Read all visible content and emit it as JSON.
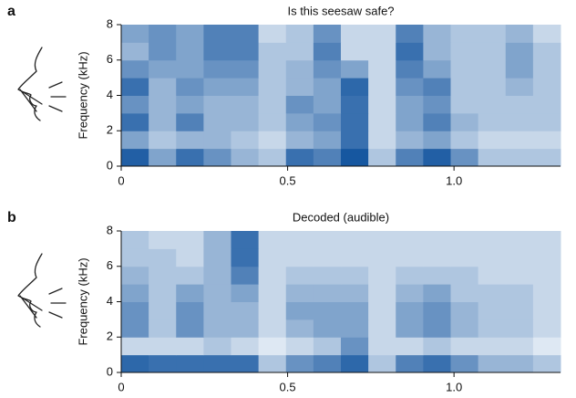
{
  "chart_data": [
    {
      "type": "spectrogram",
      "panel_label": "a",
      "title": "Is this seesaw safe?",
      "y_label": "Frequency (kHz)",
      "xlim": [
        0,
        1.32
      ],
      "xticks": [
        0,
        0.5,
        {
          "value": 1,
          "label": "1.0"
        }
      ],
      "ylim": [
        0,
        8
      ],
      "yticks": [
        0,
        2,
        4,
        6,
        8
      ],
      "colormap": [
        "#f6f9fd",
        "#0a4e9b"
      ],
      "z": [
        [
          0.9,
          0.5,
          0.8,
          0.6,
          0.4,
          0.3,
          0.8,
          0.7,
          0.95,
          0.3,
          0.7,
          0.9,
          0.6,
          0.3,
          0.3,
          0.3
        ],
        [
          0.5,
          0.3,
          0.4,
          0.4,
          0.3,
          0.2,
          0.4,
          0.5,
          0.8,
          0.2,
          0.4,
          0.5,
          0.3,
          0.2,
          0.2,
          0.2
        ],
        [
          0.8,
          0.4,
          0.7,
          0.4,
          0.4,
          0.3,
          0.5,
          0.6,
          0.8,
          0.2,
          0.5,
          0.7,
          0.4,
          0.3,
          0.3,
          0.3
        ],
        [
          0.6,
          0.4,
          0.5,
          0.4,
          0.4,
          0.3,
          0.6,
          0.5,
          0.8,
          0.2,
          0.5,
          0.6,
          0.3,
          0.3,
          0.3,
          0.3
        ],
        [
          0.8,
          0.4,
          0.6,
          0.5,
          0.5,
          0.3,
          0.4,
          0.5,
          0.85,
          0.2,
          0.6,
          0.7,
          0.3,
          0.3,
          0.4,
          0.3
        ],
        [
          0.6,
          0.5,
          0.5,
          0.6,
          0.6,
          0.3,
          0.4,
          0.6,
          0.5,
          0.2,
          0.7,
          0.5,
          0.3,
          0.3,
          0.5,
          0.3
        ],
        [
          0.4,
          0.6,
          0.5,
          0.7,
          0.7,
          0.3,
          0.3,
          0.7,
          0.2,
          0.2,
          0.8,
          0.4,
          0.3,
          0.3,
          0.5,
          0.3
        ],
        [
          0.5,
          0.6,
          0.5,
          0.7,
          0.7,
          0.2,
          0.3,
          0.6,
          0.2,
          0.2,
          0.7,
          0.4,
          0.3,
          0.3,
          0.4,
          0.2
        ]
      ]
    },
    {
      "type": "spectrogram",
      "panel_label": "b",
      "title": "Decoded (audible)",
      "y_label": "Frequency (kHz)",
      "xlim": [
        0,
        1.32
      ],
      "xticks": [
        0,
        0.5,
        {
          "value": 1,
          "label": "1.0"
        }
      ],
      "ylim": [
        0,
        8
      ],
      "yticks": [
        0,
        2,
        4,
        6,
        8
      ],
      "colormap": [
        "#f6f9fd",
        "#0a4e9b"
      ],
      "z": [
        [
          0.85,
          0.8,
          0.8,
          0.8,
          0.8,
          0.3,
          0.6,
          0.7,
          0.85,
          0.3,
          0.7,
          0.8,
          0.6,
          0.4,
          0.4,
          0.3
        ],
        [
          0.2,
          0.2,
          0.2,
          0.3,
          0.2,
          0.1,
          0.2,
          0.3,
          0.6,
          0.2,
          0.2,
          0.3,
          0.2,
          0.2,
          0.2,
          0.1
        ],
        [
          0.6,
          0.3,
          0.6,
          0.4,
          0.4,
          0.2,
          0.4,
          0.5,
          0.5,
          0.2,
          0.5,
          0.6,
          0.4,
          0.3,
          0.3,
          0.2
        ],
        [
          0.6,
          0.3,
          0.6,
          0.4,
          0.4,
          0.2,
          0.5,
          0.5,
          0.5,
          0.2,
          0.5,
          0.6,
          0.4,
          0.3,
          0.3,
          0.2
        ],
        [
          0.5,
          0.3,
          0.5,
          0.4,
          0.5,
          0.2,
          0.4,
          0.4,
          0.4,
          0.2,
          0.4,
          0.5,
          0.3,
          0.3,
          0.3,
          0.2
        ],
        [
          0.4,
          0.3,
          0.3,
          0.4,
          0.7,
          0.2,
          0.3,
          0.3,
          0.3,
          0.2,
          0.3,
          0.3,
          0.3,
          0.2,
          0.2,
          0.2
        ],
        [
          0.3,
          0.3,
          0.2,
          0.4,
          0.8,
          0.2,
          0.2,
          0.2,
          0.2,
          0.2,
          0.2,
          0.2,
          0.2,
          0.2,
          0.2,
          0.2
        ],
        [
          0.3,
          0.2,
          0.2,
          0.4,
          0.8,
          0.2,
          0.2,
          0.2,
          0.2,
          0.2,
          0.2,
          0.2,
          0.2,
          0.2,
          0.2,
          0.2
        ]
      ]
    }
  ]
}
